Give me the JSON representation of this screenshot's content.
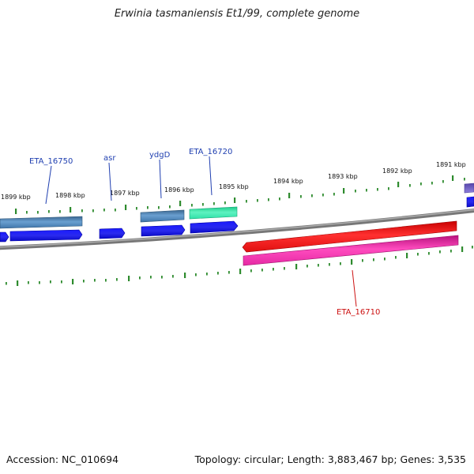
{
  "title": "Erwinia tasmaniensis Et1/99, complete genome",
  "footer": {
    "accession": "Accession: NC_010694",
    "summary": "Topology: circular; Length: 3,883,467 bp; Genes: 3,535"
  },
  "ruler_labels": [
    "1899 kbp",
    "1898 kbp",
    "1897 kbp",
    "1896 kbp",
    "1895 kbp",
    "1894 kbp",
    "1893 kbp",
    "1892 kbp",
    "1891 kbp"
  ],
  "gene_labels": [
    {
      "text": "ETA_16750",
      "color": "#1f3fb0"
    },
    {
      "text": "asr",
      "color": "#1f3fb0"
    },
    {
      "text": "ydgD",
      "color": "#1f3fb0"
    },
    {
      "text": "ETA_16720",
      "color": "#1f3fb0"
    },
    {
      "text": "ETA_16710",
      "color": "#cc1111"
    }
  ],
  "colors": {
    "tick": "#2e8b2e",
    "backbone": "#7a7a7a",
    "steelblue_gene": "#4a7fb5",
    "blue_gene": "#1212e8",
    "teal_gene": "#22e0a0",
    "red_gene": "#ee1111",
    "pink_gene": "#ee22aa",
    "purple_gene": "#7766cc"
  }
}
